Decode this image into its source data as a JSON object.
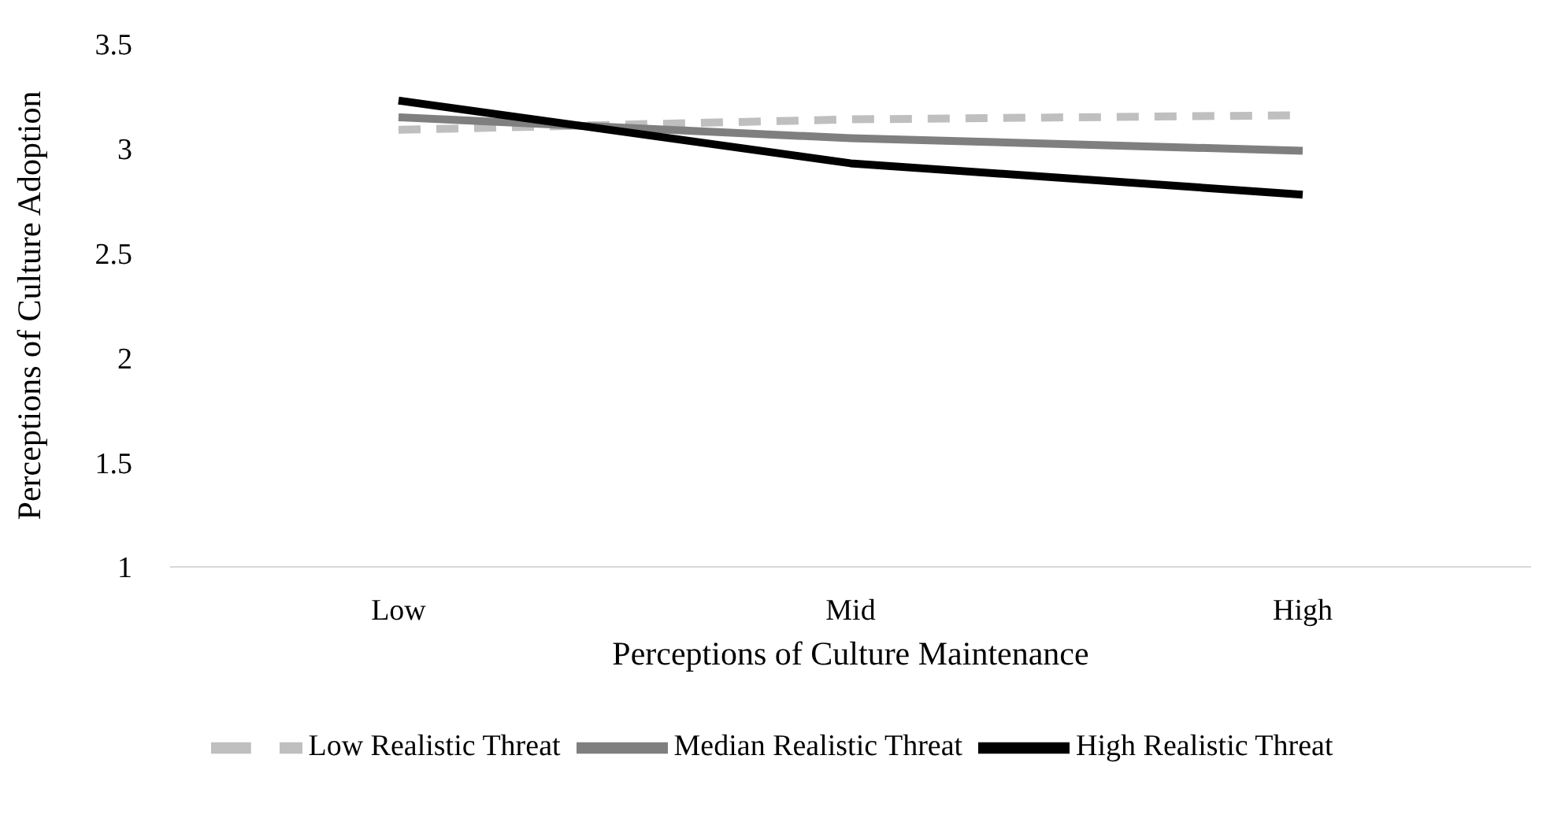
{
  "chart_data": {
    "type": "line",
    "xlabel": "Perceptions of Culture Maintenance",
    "ylabel": "Perceptions of Culture Adoption",
    "categories": [
      "Low",
      "Mid",
      "High"
    ],
    "series": [
      {
        "name": "Low Realistic Threat",
        "color": "#bfbfbf",
        "line_style": "dashed",
        "values": [
          3.09,
          3.14,
          3.16
        ]
      },
      {
        "name": "Median Realistic Threat",
        "color": "#7f7f7f",
        "line_style": "solid",
        "values": [
          3.15,
          3.05,
          2.99
        ]
      },
      {
        "name": "High Realistic Threat",
        "color": "#000000",
        "line_style": "solid",
        "values": [
          3.23,
          2.93,
          2.78
        ]
      }
    ],
    "ylim": [
      1,
      3.5
    ],
    "yticks": [
      1,
      1.5,
      2,
      2.5,
      3,
      3.5
    ],
    "grid": false,
    "legend": "bottom",
    "marker": "none"
  }
}
